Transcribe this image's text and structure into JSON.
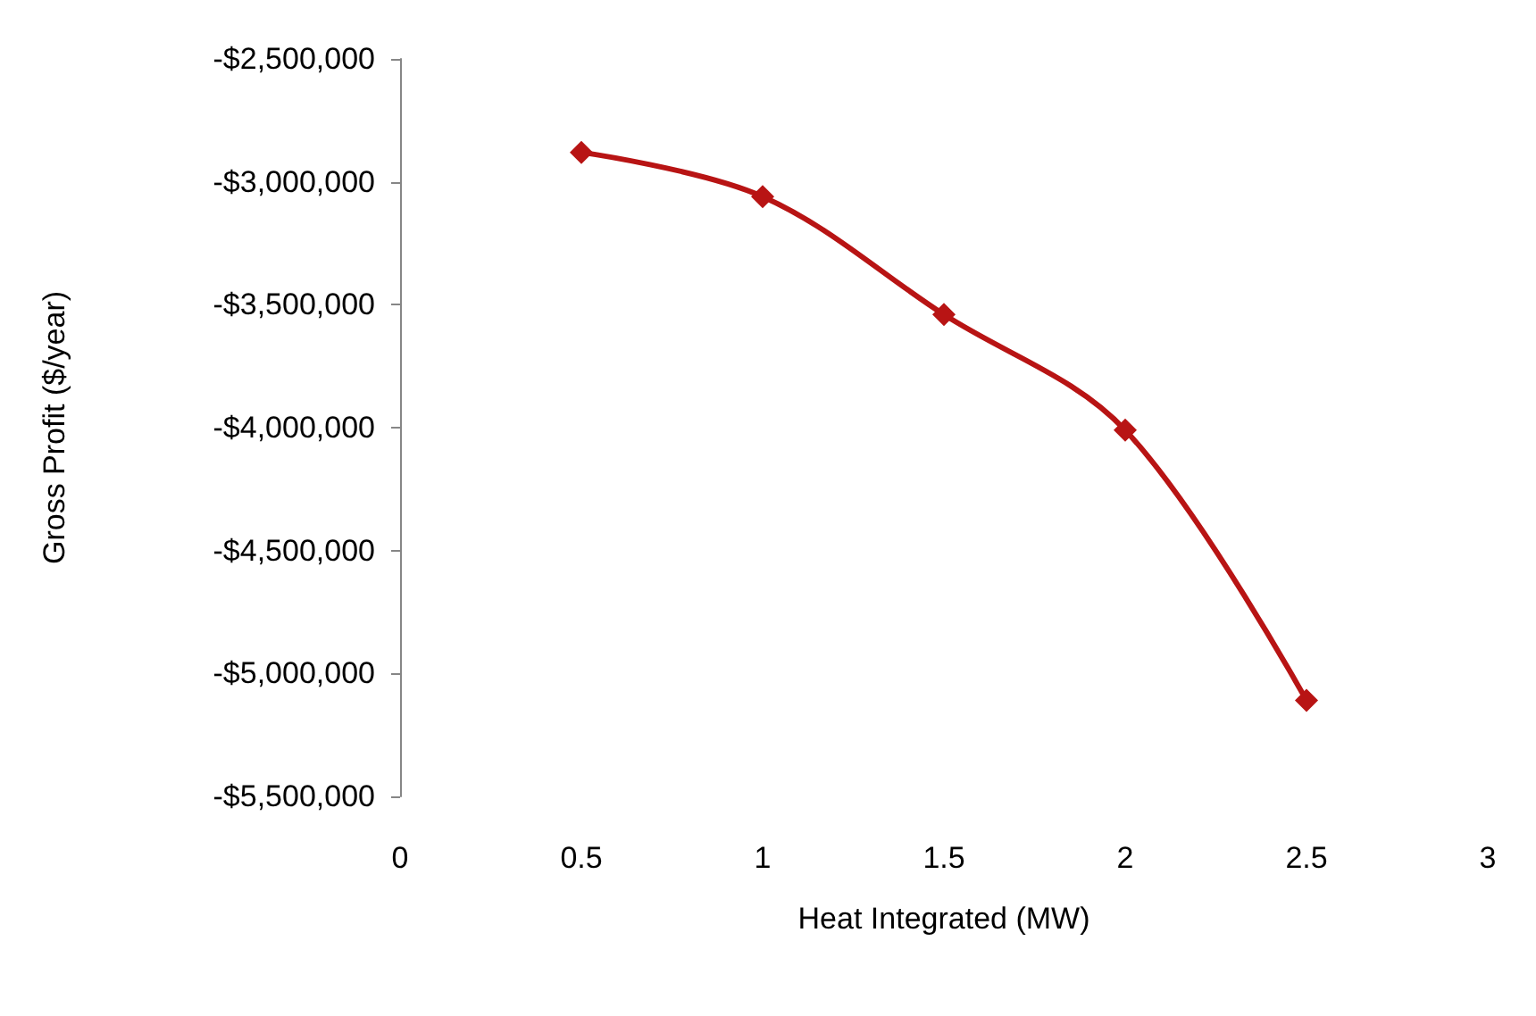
{
  "chart_data": {
    "type": "line",
    "xlabel": "Heat Integrated (MW)",
    "ylabel": "Gross Profit ($/year)",
    "x": [
      0.5,
      1,
      1.5,
      2,
      2.5
    ],
    "series": [
      {
        "color": "#b81414",
        "values": [
          -2880000,
          -3060000,
          -3540000,
          -4010000,
          -5110000
        ]
      }
    ],
    "xlim": [
      0,
      3
    ],
    "xticks": [
      0,
      0.5,
      1,
      1.5,
      2,
      2.5,
      3
    ],
    "ylim": [
      -5500000,
      -2500000
    ],
    "yticks": [
      {
        "value": -5500000,
        "label": "-$5,500,000"
      },
      {
        "value": -5000000,
        "label": "-$5,000,000"
      },
      {
        "value": -4500000,
        "label": "-$4,500,000"
      },
      {
        "value": -4000000,
        "label": "-$4,000,000"
      },
      {
        "value": -3500000,
        "label": "-$3,500,000"
      },
      {
        "value": -3000000,
        "label": "-$3,000,000"
      },
      {
        "value": -2500000,
        "label": "-$2,500,000"
      }
    ],
    "grid": false,
    "marker": "diamond",
    "line_style": "solid"
  }
}
